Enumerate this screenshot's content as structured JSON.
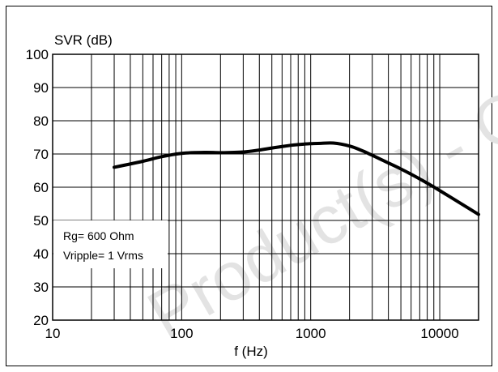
{
  "chart_data": {
    "type": "line",
    "ylabel": "SVR (dB)",
    "xlabel": "f (Hz)",
    "x_scale": "log",
    "xlim": [
      10,
      20000
    ],
    "ylim": [
      20,
      100
    ],
    "grid": true,
    "x_ticks": [
      10,
      100,
      1000,
      10000
    ],
    "x_tick_labels": [
      "10",
      "100",
      "1000",
      "10000"
    ],
    "y_ticks": [
      20,
      30,
      40,
      50,
      60,
      70,
      80,
      90,
      100
    ],
    "y_tick_labels": [
      "20",
      "30",
      "40",
      "50",
      "60",
      "70",
      "80",
      "90",
      "100"
    ],
    "series": [
      {
        "x": [
          30,
          50,
          70,
          100,
          150,
          200,
          300,
          400,
          500,
          700,
          900,
          1000,
          1200,
          1500,
          2000,
          2500,
          3000,
          4000,
          5000,
          7000,
          10000,
          15000,
          20000
        ],
        "y": [
          66,
          67.8,
          69.2,
          70.2,
          70.5,
          70.4,
          70.6,
          71.2,
          71.8,
          72.6,
          73.0,
          73.1,
          73.2,
          73.3,
          72.4,
          71.0,
          69.6,
          67.3,
          65.5,
          62.5,
          59.0,
          54.8,
          51.8
        ],
        "color": "#000000"
      }
    ],
    "annotations": [
      "Rg= 600 Ohm",
      "Vripple= 1 Vrms"
    ]
  },
  "watermark": "Product(s) - O"
}
